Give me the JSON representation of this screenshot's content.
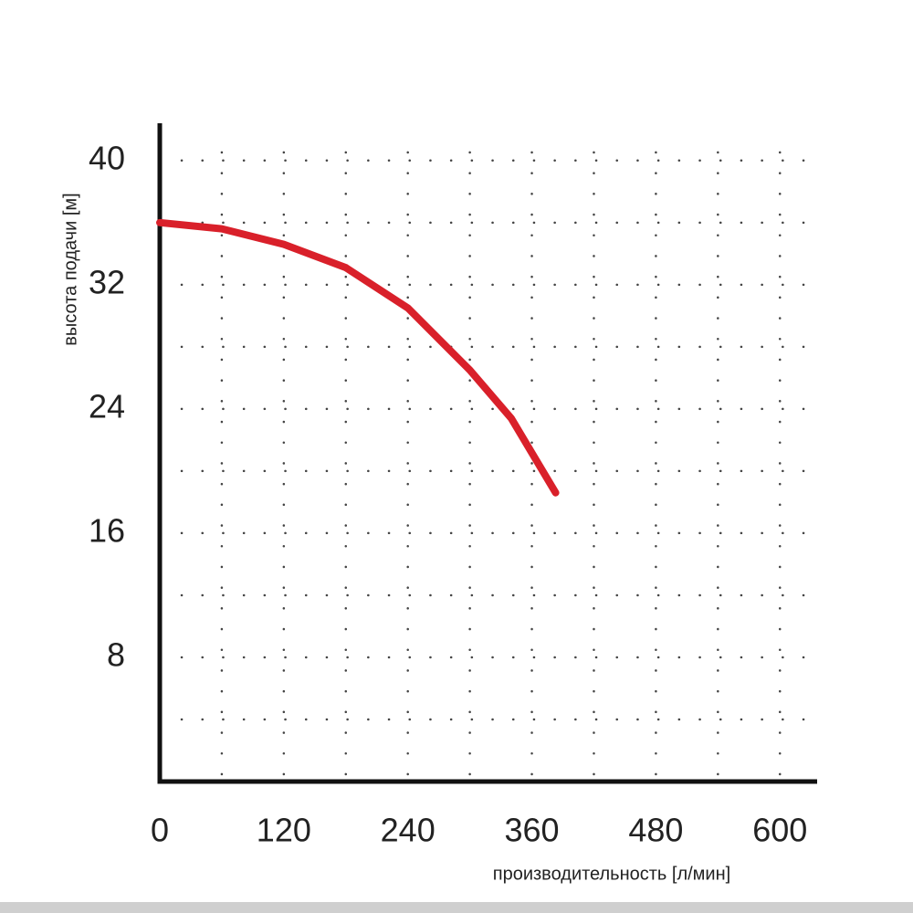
{
  "chart_data": {
    "type": "line",
    "y_label": "высота подачи [м]",
    "x_label": "производительность [л/мин]",
    "x": [
      0,
      60,
      120,
      180,
      240,
      300,
      340,
      383
    ],
    "values": [
      36,
      35.6,
      34.6,
      33.1,
      30.5,
      26.5,
      23.4,
      18.6
    ],
    "color": "#d9202a",
    "xlim": [
      0,
      636
    ],
    "ylim": [
      0,
      42.4
    ],
    "xticks": [
      0,
      120,
      240,
      360,
      480,
      600
    ],
    "yticks": [
      8,
      16,
      24,
      32,
      40
    ],
    "xgrid": [
      60,
      120,
      180,
      240,
      300,
      360,
      420,
      480,
      540,
      600
    ],
    "ygrid": [
      4,
      8,
      12,
      16,
      20,
      24,
      28,
      32,
      36,
      40
    ],
    "grid": true
  }
}
